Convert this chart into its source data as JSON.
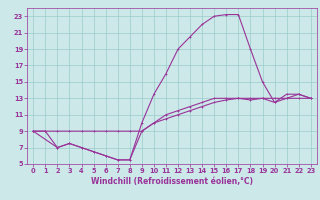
{
  "xlabel": "Windchill (Refroidissement éolien,°C)",
  "xlim": [
    -0.5,
    23.5
  ],
  "ylim": [
    5,
    24
  ],
  "xticks": [
    0,
    1,
    2,
    3,
    4,
    5,
    6,
    7,
    8,
    9,
    10,
    11,
    12,
    13,
    14,
    15,
    16,
    17,
    18,
    19,
    20,
    21,
    22,
    23
  ],
  "yticks": [
    5,
    7,
    9,
    11,
    13,
    15,
    17,
    19,
    21,
    23
  ],
  "bg_color": "#cce8e8",
  "grid_color": "#99cccc",
  "line_color": "#993399",
  "line1_x": [
    0,
    1,
    2,
    3,
    4,
    5,
    6,
    7,
    8,
    9,
    10,
    11,
    12,
    13,
    14,
    15,
    16,
    17,
    18,
    19,
    20,
    21,
    22,
    23
  ],
  "line1_y": [
    9,
    9,
    9,
    9,
    9,
    9,
    9,
    9,
    9,
    9,
    10,
    10.5,
    11,
    11.5,
    12,
    12.5,
    12.8,
    13,
    13,
    13,
    13,
    13,
    13,
    13
  ],
  "line2_x": [
    0,
    1,
    2,
    3,
    4,
    5,
    6,
    7,
    8,
    9,
    10,
    11,
    12,
    13,
    14,
    15,
    16,
    17,
    18,
    19,
    20,
    21,
    22,
    23
  ],
  "line2_y": [
    9,
    9,
    7,
    7.5,
    7,
    6.5,
    6,
    5.5,
    5.5,
    10,
    13.5,
    16,
    19,
    20.5,
    22,
    23,
    23.2,
    23.2,
    19,
    15,
    12.5,
    13,
    13.5,
    13
  ],
  "line3_x": [
    0,
    2,
    3,
    4,
    5,
    6,
    7,
    8,
    9,
    10,
    11,
    12,
    13,
    14,
    15,
    16,
    17,
    18,
    19,
    20,
    21,
    22,
    23
  ],
  "line3_y": [
    9,
    7,
    7.5,
    7,
    6.5,
    6,
    5.5,
    5.5,
    9,
    10,
    11,
    11.5,
    12,
    12.5,
    13,
    13,
    13,
    12.8,
    13,
    12.5,
    13.5,
    13.5,
    13
  ],
  "xlabel_fontsize": 5.5,
  "tick_fontsize": 4.8
}
